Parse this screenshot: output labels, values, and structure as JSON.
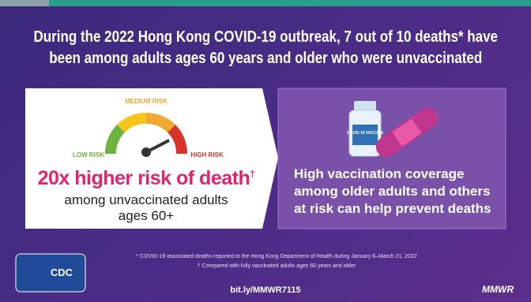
{
  "header": {
    "title": "During the 2022 Hong Kong COVID-19 outbreak, 7 out of 10 deaths* have been among adults ages 60 years and older who were unvaccinated"
  },
  "gauge": {
    "medium": "MEDIUM RISK",
    "low": "LOW RISK",
    "high": "HIGH RISK"
  },
  "left_card": {
    "headline": "20x higher risk of death",
    "mark": "†",
    "subtext": "among unvaccinated adults ages 60+"
  },
  "right_card": {
    "icon_label": "COVID-19 VACCINE",
    "text": "High vaccination coverage among older adults and others at risk can help prevent deaths"
  },
  "footnotes": [
    "* COVID-19-associated deaths reported to the Hong Kong Department of Health during January 6–March 21, 2022",
    "† Compared with fully vaccinated adults ages 60 years and older"
  ],
  "footer": {
    "logo": "CDC",
    "url": "bit.ly/MMWR7115",
    "brand": "MMWR"
  }
}
